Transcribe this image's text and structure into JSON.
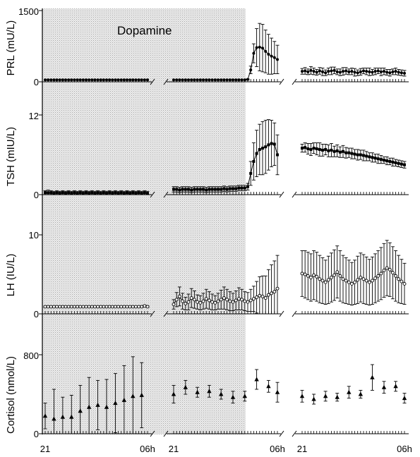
{
  "chart_data": {
    "type": "line",
    "shaded_region_label": "Dopamine",
    "x_tick_labels": {
      "segment_1": [
        "21",
        "06h"
      ],
      "segment_2": [
        "21",
        "06h"
      ],
      "segment_3": [
        "21",
        "06h"
      ]
    },
    "x_unit": "clock hour",
    "legend": "none",
    "grid": false,
    "panels": [
      {
        "id": "prl",
        "ylabel": "PRL (mU/L)",
        "ylim": [
          0,
          1500
        ],
        "yticks": [
          "0",
          "1500"
        ],
        "marker": "filled-circle",
        "segments": [
          {
            "mean": [
              40,
              40,
              40,
              40,
              40,
              40,
              40,
              40,
              40,
              40,
              40,
              40,
              40,
              40,
              40,
              40,
              40,
              40,
              40,
              40,
              40,
              40,
              40,
              40,
              40,
              40,
              40,
              40,
              40,
              40,
              40,
              40,
              40,
              40,
              40,
              40
            ],
            "err": [
              0,
              0,
              0,
              0,
              0,
              0,
              0,
              0,
              0,
              0,
              0,
              0,
              0,
              0,
              0,
              0,
              0,
              0,
              0,
              0,
              0,
              0,
              0,
              0,
              0,
              0,
              0,
              0,
              0,
              0,
              0,
              0,
              0,
              0,
              0,
              0
            ]
          },
          {
            "mean": [
              40,
              40,
              40,
              40,
              40,
              40,
              40,
              40,
              40,
              40,
              40,
              40,
              40,
              40,
              40,
              40,
              40,
              40,
              40,
              40,
              40,
              40,
              40,
              40,
              40,
              50,
              250,
              600,
              720,
              730,
              710,
              640,
              580,
              540,
              510,
              470
            ],
            "err": [
              0,
              0,
              0,
              0,
              0,
              0,
              0,
              0,
              0,
              0,
              0,
              0,
              0,
              0,
              0,
              0,
              0,
              0,
              0,
              0,
              0,
              0,
              0,
              0,
              0,
              10,
              80,
              200,
              400,
              500,
              500,
              450,
              420,
              380,
              340,
              300
            ]
          },
          {
            "mean": [
              220,
              230,
              210,
              240,
              220,
              200,
              230,
              210,
              190,
              220,
              230,
              240,
              210,
              200,
              220,
              230,
              210,
              220,
              200,
              190,
              210,
              230,
              220,
              210,
              200,
              220,
              230,
              210,
              220,
              200,
              190,
              210,
              220,
              200,
              190,
              180
            ],
            "err": [
              60,
              70,
              60,
              80,
              70,
              60,
              70,
              80,
              60,
              70,
              80,
              70,
              60,
              70,
              80,
              70,
              60,
              70,
              80,
              60,
              70,
              60,
              70,
              80,
              60,
              70,
              60,
              80,
              70,
              60,
              70,
              60,
              70,
              60,
              60,
              60
            ]
          }
        ]
      },
      {
        "id": "tsh",
        "ylabel": "TSH (mIU/L)",
        "ylim": [
          0,
          12
        ],
        "yticks": [
          "0",
          "12"
        ],
        "marker": "filled-square",
        "segments": [
          {
            "mean": [
              0.3,
              0.3,
              0.3,
              0.2,
              0.3,
              0.2,
              0.3,
              0.2,
              0.3,
              0.2,
              0.3,
              0.2,
              0.3,
              0.2,
              0.3,
              0.2,
              0.3,
              0.2,
              0.3,
              0.2,
              0.3,
              0.2,
              0.3,
              0.2,
              0.3,
              0.2,
              0.3,
              0.2,
              0.3,
              0.2,
              0.3,
              0.2,
              0.3,
              0.2,
              0.3,
              0.2
            ],
            "err": [
              0.3,
              0.4,
              0.3,
              0.3,
              0.3,
              0.3,
              0.3,
              0.3,
              0.3,
              0.3,
              0.3,
              0.3,
              0.3,
              0.3,
              0.3,
              0.3,
              0.3,
              0.3,
              0.3,
              0.3,
              0.3,
              0.3,
              0.3,
              0.3,
              0.3,
              0.3,
              0.3,
              0.3,
              0.3,
              0.3,
              0.3,
              0.3,
              0.3,
              0.3,
              0.3,
              0.3
            ]
          },
          {
            "mean": [
              0.8,
              0.8,
              0.7,
              0.8,
              0.8,
              0.8,
              0.7,
              0.8,
              0.8,
              0.8,
              0.8,
              0.7,
              0.8,
              0.8,
              0.8,
              0.8,
              0.8,
              0.9,
              0.8,
              0.9,
              0.9,
              0.9,
              1.0,
              1.0,
              1.0,
              1.2,
              3.2,
              5.0,
              6.2,
              6.8,
              7.0,
              7.2,
              7.5,
              7.7,
              7.6,
              6.0
            ],
            "err": [
              0.4,
              0.4,
              0.4,
              0.4,
              0.4,
              0.4,
              0.4,
              0.4,
              0.4,
              0.4,
              0.4,
              0.4,
              0.4,
              0.4,
              0.4,
              0.4,
              0.4,
              0.4,
              0.4,
              0.4,
              0.4,
              0.4,
              0.4,
              0.4,
              0.4,
              0.5,
              1.8,
              2.8,
              3.5,
              3.8,
              4.0,
              4.0,
              3.8,
              3.5,
              3.2,
              3.0
            ]
          },
          {
            "mean": [
              7.0,
              7.1,
              6.9,
              6.8,
              7.0,
              6.9,
              6.8,
              6.7,
              6.8,
              6.6,
              6.7,
              6.5,
              6.6,
              6.4,
              6.5,
              6.3,
              6.3,
              6.2,
              6.1,
              6.0,
              6.0,
              5.9,
              5.8,
              5.7,
              5.6,
              5.5,
              5.4,
              5.3,
              5.2,
              5.1,
              5.0,
              4.9,
              4.8,
              4.7,
              4.6,
              4.5
            ],
            "err": [
              0.6,
              0.7,
              0.8,
              0.9,
              0.8,
              0.9,
              1.0,
              0.9,
              0.8,
              0.9,
              1.0,
              0.8,
              0.9,
              0.8,
              0.9,
              0.8,
              0.7,
              0.8,
              0.7,
              0.8,
              0.7,
              0.8,
              0.7,
              0.6,
              0.7,
              0.6,
              0.7,
              0.6,
              0.5,
              0.6,
              0.5,
              0.6,
              0.5,
              0.5,
              0.5,
              0.5
            ]
          }
        ]
      },
      {
        "id": "lh",
        "ylabel": "LH (IU/L)",
        "ylim": [
          0,
          10
        ],
        "yticks": [
          "0",
          "10"
        ],
        "marker": "open-circle",
        "segments": [
          {
            "mean": [
              0.9,
              0.9,
              0.9,
              0.9,
              0.9,
              0.9,
              0.9,
              0.9,
              0.9,
              0.9,
              0.9,
              0.9,
              0.9,
              0.9,
              0.9,
              0.9,
              0.9,
              0.9,
              0.9,
              0.9,
              0.9,
              0.9,
              0.9,
              0.9,
              0.9,
              0.9,
              0.9,
              0.9,
              0.9,
              0.9,
              0.9,
              0.9,
              0.9,
              0.9,
              1.0,
              0.9
            ],
            "err": [
              0.1,
              0.1,
              0.1,
              0.1,
              0.1,
              0.1,
              0.1,
              0.1,
              0.1,
              0.1,
              0.1,
              0.1,
              0.1,
              0.1,
              0.1,
              0.1,
              0.1,
              0.1,
              0.1,
              0.1,
              0.1,
              0.1,
              0.1,
              0.1,
              0.1,
              0.1,
              0.1,
              0.1,
              0.1,
              0.1,
              0.1,
              0.1,
              0.1,
              0.1,
              0.1,
              0.1
            ]
          },
          {
            "mean": [
              1.2,
              1.8,
              2.2,
              1.6,
              1.3,
              1.5,
              2.0,
              1.8,
              1.5,
              1.4,
              1.6,
              1.9,
              1.7,
              1.5,
              1.4,
              1.6,
              1.8,
              2.0,
              1.8,
              1.6,
              1.5,
              1.7,
              1.9,
              1.8,
              1.6,
              1.5,
              1.7,
              1.9,
              2.1,
              2.3,
              2.2,
              2.0,
              2.4,
              2.6,
              2.8,
              3.2
            ],
            "err": [
              0.6,
              0.9,
              1.2,
              1.0,
              0.8,
              1.0,
              1.2,
              1.1,
              0.9,
              0.9,
              1.0,
              1.2,
              1.1,
              1.0,
              0.9,
              1.0,
              1.2,
              1.4,
              1.3,
              1.2,
              1.1,
              1.2,
              1.4,
              1.3,
              1.2,
              1.2,
              1.4,
              1.6,
              2.0,
              2.4,
              2.6,
              2.8,
              3.2,
              3.6,
              3.9,
              4.2
            ]
          },
          {
            "mean": [
              5.1,
              5.0,
              4.8,
              4.6,
              4.9,
              4.7,
              4.4,
              4.2,
              4.0,
              4.3,
              4.6,
              4.9,
              5.3,
              4.8,
              4.4,
              4.2,
              4.0,
              3.8,
              4.0,
              4.3,
              4.6,
              4.4,
              4.2,
              4.0,
              4.2,
              4.5,
              4.8,
              5.1,
              5.5,
              5.8,
              5.6,
              5.2,
              4.8,
              4.4,
              4.1,
              3.8
            ],
            "err": [
              2.9,
              3.0,
              3.0,
              3.0,
              3.1,
              3.1,
              3.0,
              2.9,
              2.8,
              3.0,
              3.1,
              3.2,
              3.3,
              3.2,
              3.0,
              2.9,
              2.8,
              2.7,
              2.8,
              3.0,
              3.1,
              3.1,
              3.0,
              2.9,
              3.0,
              3.1,
              3.2,
              3.3,
              3.4,
              3.5,
              3.4,
              3.3,
              3.2,
              3.0,
              2.8,
              2.6
            ]
          }
        ]
      },
      {
        "id": "cortisol",
        "ylabel": "Cortisol (nmol/L)",
        "ylim": [
          0,
          800
        ],
        "yticks": [
          "0",
          "800"
        ],
        "marker": "filled-triangle",
        "segments": [
          {
            "idx": [
              0,
              3,
              6,
              9,
              12,
              15,
              18,
              21,
              24,
              27,
              30,
              33
            ],
            "mean": [
              180,
              150,
              170,
              170,
              230,
              270,
              290,
              270,
              310,
              340,
              380,
              390
            ],
            "err": [
              130,
              300,
              200,
              220,
              260,
              300,
              250,
              280,
              300,
              350,
              400,
              330
            ]
          },
          {
            "idx": [
              0,
              4,
              8,
              12,
              16,
              20,
              24,
              28,
              32,
              35
            ],
            "mean": [
              400,
              470,
              420,
              430,
              400,
              370,
              380,
              550,
              480,
              420
            ],
            "err": [
              90,
              70,
              50,
              60,
              50,
              60,
              50,
              100,
              60,
              100
            ]
          },
          {
            "idx": [
              0,
              4,
              8,
              12,
              16,
              20,
              24,
              28,
              32,
              35
            ],
            "mean": [
              380,
              350,
              380,
              370,
              420,
              400,
              570,
              470,
              480,
              360
            ],
            "err": [
              60,
              50,
              50,
              40,
              60,
              40,
              130,
              60,
              50,
              50
            ]
          }
        ]
      }
    ]
  }
}
